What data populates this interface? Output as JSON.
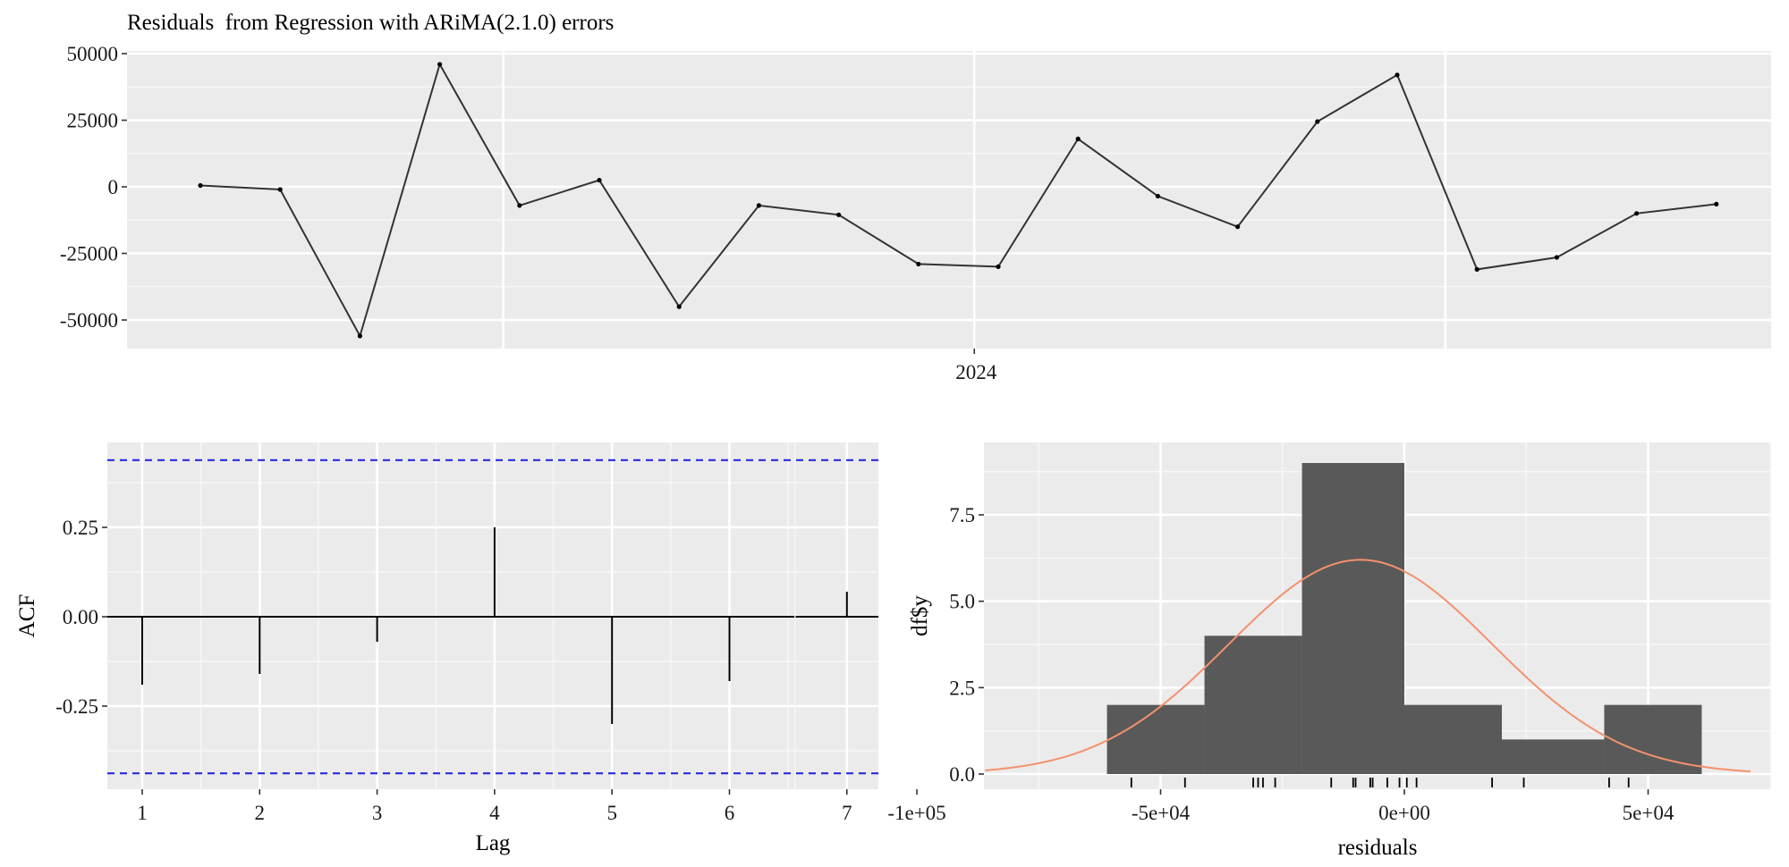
{
  "chart_data": [
    {
      "type": "line",
      "title": "Residuals  from Regression with ARiMA(2.1.0) errors",
      "xlabel": "",
      "ylabel": "",
      "x_tick_labels": [
        "2024"
      ],
      "y_tick_labels": [
        "50000",
        "25000",
        "0",
        "-25000",
        "-50000"
      ],
      "y_ticks": [
        50000,
        25000,
        0,
        -25000,
        -50000
      ],
      "ylim": [
        -60000,
        50000
      ],
      "x_index_range": [
        0,
        20
      ],
      "x_tick_index": 9,
      "grid": true,
      "series": [
        {
          "values": [
            500,
            -1000,
            -56000,
            46000,
            -7000,
            2500,
            -45000,
            -7000,
            -10500,
            -29000,
            -30000,
            18000,
            -3500,
            -15000,
            24500,
            42000,
            -31000,
            -26500,
            -10000,
            -6500
          ]
        }
      ]
    },
    {
      "type": "bar",
      "xlabel": "Lag",
      "ylabel": "ACF",
      "x_tick_labels": [
        "1",
        "2",
        "3",
        "4",
        "5",
        "6",
        "7"
      ],
      "y_tick_labels": [
        "0.25",
        "0.00",
        "-0.25"
      ],
      "y_ticks": [
        0.25,
        0.0,
        -0.25
      ],
      "lags": [
        1,
        2,
        3,
        4,
        5,
        6,
        7
      ],
      "values": [
        -0.19,
        -0.16,
        -0.07,
        0.25,
        -0.3,
        -0.18,
        0.07
      ],
      "confidence_bound": 0.438,
      "xlim": [
        0.7,
        7.3
      ],
      "ylim": [
        -0.48,
        0.47
      ],
      "grid": true,
      "colors": {
        "bars": "#000000",
        "confidence_bounds": "#2a2ae0"
      }
    },
    {
      "type": "bar",
      "xlabel": "residuals",
      "ylabel": "df$y",
      "x_tick_labels": [
        "-1e+05",
        "-5e+04",
        "0e+00",
        "5e+04"
      ],
      "x_ticks": [
        -100000,
        -50000,
        0,
        50000
      ],
      "y_tick_labels": [
        "7.5",
        "5.0",
        "2.5",
        "0.0"
      ],
      "y_ticks": [
        7.5,
        5.0,
        2.5,
        0.0
      ],
      "bins": [
        {
          "from": -61000,
          "to": -41000,
          "count": 2
        },
        {
          "from": -41000,
          "to": -21000,
          "count": 4
        },
        {
          "from": -21000,
          "to": 0,
          "count": 9
        },
        {
          "from": 0,
          "to": 20000,
          "count": 2
        },
        {
          "from": 20000,
          "to": 41000,
          "count": 1
        },
        {
          "from": 41000,
          "to": 61000,
          "count": 2
        }
      ],
      "density_curve": {
        "mean": -9000,
        "peak": 6.2,
        "sd": 27000,
        "range": [
          -86000,
          71000
        ]
      },
      "rug": [
        -56000,
        -45000,
        -31000,
        -30000,
        -29000,
        -26500,
        -15000,
        -10500,
        -10000,
        -7000,
        -7000,
        -6500,
        -3500,
        -1000,
        500,
        2500,
        18000,
        24500,
        42000,
        46000
      ],
      "xlim": [
        -112000,
        82000
      ],
      "ylim": [
        0,
        9.3
      ],
      "grid": true,
      "colors": {
        "bars": "#595959",
        "density": "#f4916e"
      }
    }
  ]
}
